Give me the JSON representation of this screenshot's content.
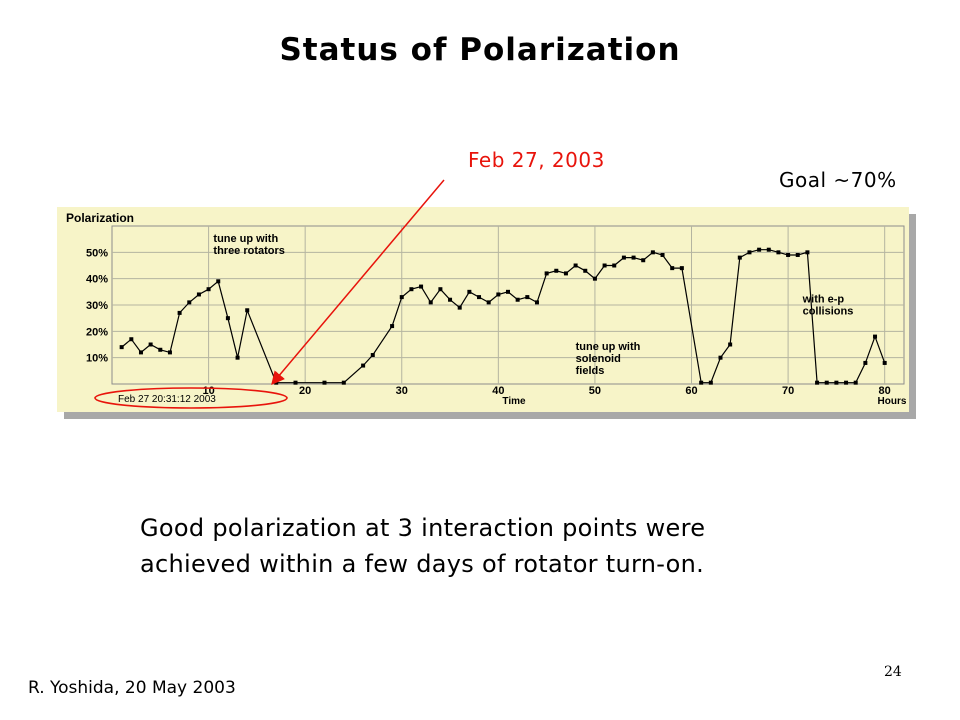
{
  "slide": {
    "title": "Status of Polarization",
    "callout_date": "Feb 27, 2003",
    "goal": "Goal ~70%",
    "caption_lines": [
      "Good polarization at 3 interaction points were",
      "achieved within a few days of rotator turn-on."
    ],
    "footer": "R. Yoshida, 20 May 2003",
    "page_number": "24"
  },
  "colors": {
    "accent": "#e8140c",
    "plot_background": "#f7f4c8",
    "data": "#000000"
  },
  "chart_data": {
    "type": "scatter",
    "title": "Polarization",
    "xlabel": "Time",
    "x_unit_label": "Hours",
    "start_label": "Feb 27 20:31:12 2003",
    "xlim": [
      0,
      82
    ],
    "ylim": [
      0,
      60
    ],
    "x_ticks": [
      10,
      20,
      30,
      40,
      50,
      60,
      70,
      80
    ],
    "y_ticks": [
      {
        "value": 10,
        "label": "10%"
      },
      {
        "value": 20,
        "label": "20%"
      },
      {
        "value": 30,
        "label": "30%"
      },
      {
        "value": 40,
        "label": "40%"
      },
      {
        "value": 50,
        "label": "50%"
      }
    ],
    "grid": true,
    "annotations": [
      {
        "text": "tune up with\nthree rotators",
        "x": 10.5,
        "y": 54
      },
      {
        "text": "tune up with\nsolenoid\nfields",
        "x": 48,
        "y": 13
      },
      {
        "text": "with e-p\ncollisions",
        "x": 71.5,
        "y": 31
      }
    ],
    "series": [
      {
        "x": [
          1,
          2,
          3,
          4,
          5,
          6,
          7,
          8,
          9,
          10,
          11,
          12,
          13,
          14,
          17,
          19,
          22,
          24,
          26,
          27,
          29,
          30,
          31,
          32,
          33,
          34,
          35,
          36,
          37,
          38,
          39,
          40,
          41,
          42,
          43,
          44,
          45,
          46,
          47,
          48,
          49,
          50,
          51,
          52,
          53,
          54,
          55,
          56,
          57,
          58,
          59,
          61,
          62,
          63,
          64,
          65,
          66,
          67,
          68,
          69,
          70,
          71,
          72,
          73,
          74,
          75,
          76,
          77,
          78,
          79,
          80
        ],
        "y": [
          14,
          17,
          12,
          15,
          13,
          12,
          27,
          31,
          34,
          36,
          39,
          25,
          10,
          28,
          0.5,
          0.5,
          0.5,
          0.5,
          7,
          11,
          22,
          33,
          36,
          37,
          31,
          36,
          32,
          29,
          35,
          33,
          31,
          34,
          35,
          32,
          33,
          31,
          42,
          43,
          42,
          45,
          43,
          40,
          45,
          45,
          48,
          48,
          47,
          50,
          49,
          44,
          44,
          0.5,
          0.5,
          10,
          15,
          48,
          50,
          51,
          51,
          50,
          49,
          49,
          50,
          0.5,
          0.5,
          0.5,
          0.5,
          0.5,
          8,
          18,
          8
        ]
      }
    ]
  }
}
